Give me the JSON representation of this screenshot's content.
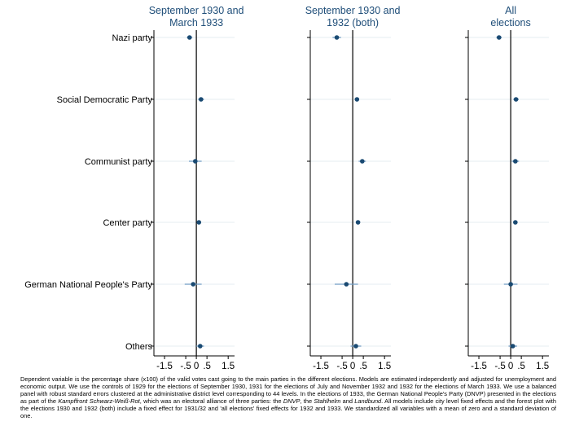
{
  "chart_data": {
    "type": "scatter",
    "subtype": "coefficient-forest-plot",
    "colors": {
      "point": "#1a4a72",
      "ci": "#6f9cc4",
      "grid": "#e6ecf1",
      "title": "#1f4e79",
      "axis": "#000000"
    },
    "categories": [
      "Nazi party",
      "Social Democratic Party",
      "Communist party",
      "Center party",
      "German National People's Party",
      "Others"
    ],
    "xlim": [
      -2,
      1.8
    ],
    "xticks": [
      "-1.5",
      "-.5",
      "0",
      ".5",
      "1.5"
    ],
    "xtick_values": [
      -1.5,
      -0.5,
      0,
      0.5,
      1.5
    ],
    "grid": true,
    "panels": [
      {
        "title_lines": [
          "September 1930 and",
          "March 1933"
        ],
        "estimates": [
          -0.32,
          0.22,
          -0.05,
          0.12,
          -0.15,
          0.18
        ],
        "ci_low": [
          -0.45,
          0.08,
          -0.35,
          0.06,
          -0.55,
          0.0
        ],
        "ci_high": [
          -0.19,
          0.36,
          0.25,
          0.18,
          0.25,
          0.36
        ]
      },
      {
        "title_lines": [
          "September 1930 and",
          "1932 (both)"
        ],
        "estimates": [
          -0.75,
          0.2,
          0.45,
          0.25,
          -0.3,
          0.15
        ],
        "ci_low": [
          -0.95,
          0.1,
          0.28,
          0.18,
          -0.85,
          -0.1
        ],
        "ci_high": [
          -0.55,
          0.3,
          0.62,
          0.32,
          0.25,
          0.4
        ]
      },
      {
        "title_lines": [
          "All",
          "elections"
        ],
        "estimates": [
          -0.55,
          0.25,
          0.22,
          0.22,
          0.0,
          0.1
        ],
        "ci_low": [
          -0.68,
          0.12,
          0.05,
          0.15,
          -0.32,
          -0.1
        ],
        "ci_high": [
          -0.42,
          0.38,
          0.39,
          0.29,
          0.32,
          0.3
        ]
      }
    ]
  },
  "note": {
    "part1": "Dependent variable is the percentage share (x100) of the valid votes cast going to the main parties in the different elections. Models are estimated independently and adjusted for unemployment and economic output. We use the controls of 1929 for the elections of September 1930, 1931 for the elections of July and November 1932 and 1932 for the elections of March 1933. We use a balanced panel with robust standard errors clustered at the administrative district level corresponding to 44 levels. In the elections of 1933, the German National People's Party (DNVP) presented in the elections as part of the ",
    "italic1": "Kampffront Schwarz-Weiß-Rot",
    "part2": ", which was an electoral alliance of three parties: the ",
    "italic2": "DNVP",
    "part3": ", the ",
    "italic3": "Stahlhelm",
    "part4": " and ",
    "italic4": "Landbund",
    "part5": ". All models include city level fixed effects and the forest plot with the elections 1930 and 1932 (both) include a fixed effect for 1931/32 and 'all elections' fixed effects for 1932 and 1933. We standardized all variables with a mean of zero and a standard deviation of one."
  }
}
